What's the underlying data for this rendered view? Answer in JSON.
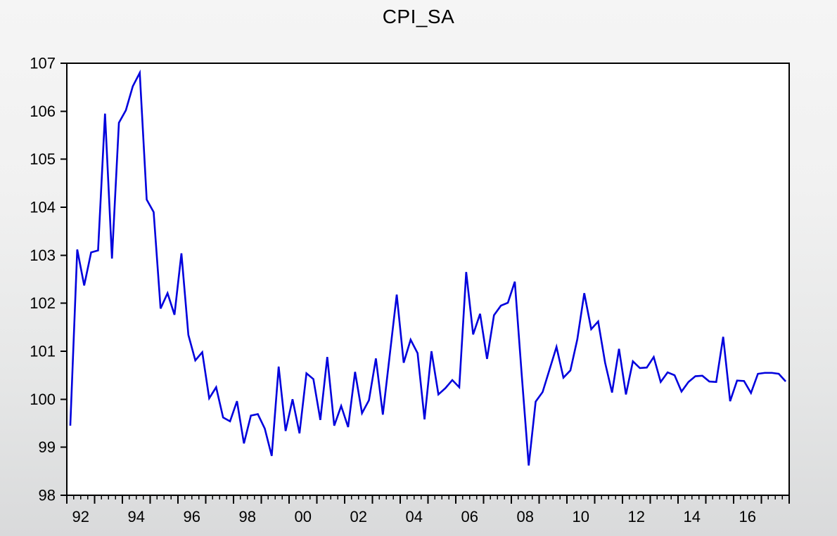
{
  "title": "CPI_SA",
  "chart_data": {
    "type": "line",
    "title": "CPI_SA",
    "series_name": "CPI_SA",
    "frequency": "quarterly",
    "start_period": "1992Q1",
    "end_period": "2017Q4",
    "values": [
      99.45,
      103.12,
      102.37,
      103.06,
      103.1,
      105.95,
      102.93,
      105.76,
      106.02,
      106.52,
      106.8,
      104.16,
      103.9,
      101.89,
      102.21,
      101.76,
      103.04,
      101.34,
      100.81,
      100.98,
      100.02,
      100.25,
      99.62,
      99.54,
      99.96,
      99.08,
      99.66,
      99.69,
      99.39,
      98.82,
      100.68,
      99.34,
      100.0,
      99.29,
      100.54,
      100.42,
      99.57,
      100.88,
      99.45,
      99.86,
      99.42,
      100.57,
      99.71,
      99.98,
      100.85,
      99.68,
      100.93,
      102.18,
      100.76,
      101.24,
      100.96,
      99.58,
      101.0,
      100.1,
      100.23,
      100.4,
      100.25,
      102.65,
      101.35,
      101.78,
      100.84,
      101.75,
      101.95,
      102.01,
      102.45,
      100.5,
      98.62,
      99.95,
      100.15,
      100.62,
      101.09,
      100.45,
      100.6,
      101.25,
      102.21,
      101.46,
      101.62,
      100.76,
      100.14,
      101.05,
      100.1,
      100.79,
      100.65,
      100.66,
      100.88,
      100.36,
      100.56,
      100.5,
      100.16,
      100.36,
      100.48,
      100.49,
      100.37,
      100.36,
      101.3,
      99.96,
      100.39,
      100.38,
      100.13,
      100.53,
      100.55,
      100.55,
      100.53,
      100.37
    ],
    "ylim": [
      98,
      107
    ],
    "y_ticks": [
      98,
      99,
      100,
      101,
      102,
      103,
      104,
      105,
      106,
      107
    ],
    "x_axis": {
      "start_year": 1992,
      "end_year": 2018,
      "minor_ticks_per_year": 4,
      "tick_labels": [
        {
          "label": "92",
          "year": 1992
        },
        {
          "label": "94",
          "year": 1994
        },
        {
          "label": "96",
          "year": 1996
        },
        {
          "label": "98",
          "year": 1998
        },
        {
          "label": "00",
          "year": 2000
        },
        {
          "label": "02",
          "year": 2002
        },
        {
          "label": "04",
          "year": 2004
        },
        {
          "label": "06",
          "year": 2006
        },
        {
          "label": "08",
          "year": 2008
        },
        {
          "label": "10",
          "year": 2010
        },
        {
          "label": "12",
          "year": 2012
        },
        {
          "label": "14",
          "year": 2014
        },
        {
          "label": "16",
          "year": 2016
        }
      ]
    },
    "grid": "off",
    "legend": "none",
    "line_color": "#0000dd",
    "plot_bg_color": "#ffffff",
    "axis_color": "#000000"
  }
}
